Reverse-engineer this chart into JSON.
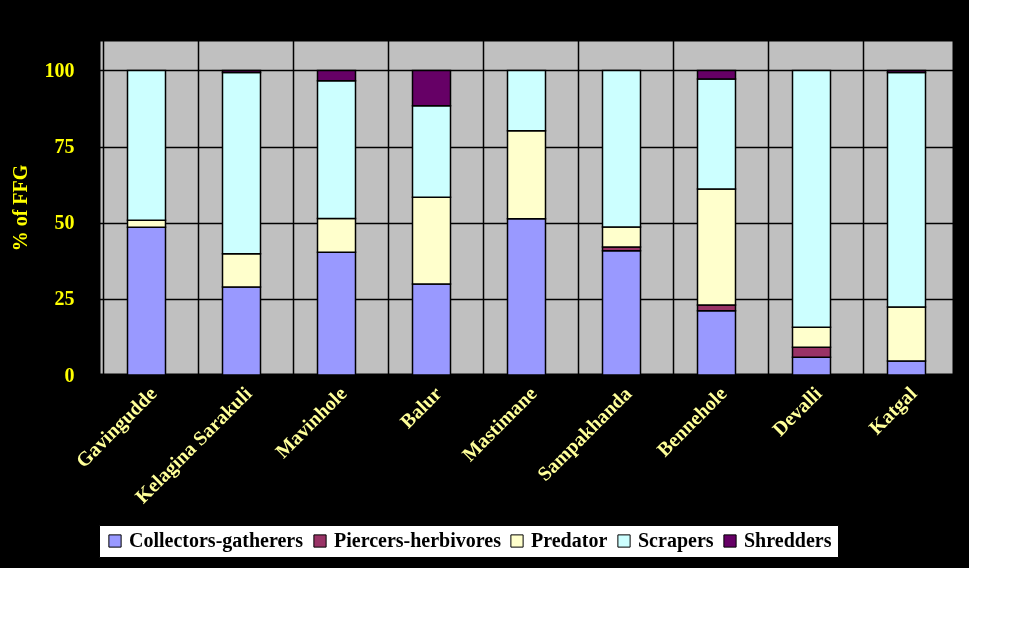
{
  "chart_data": {
    "type": "bar",
    "stacked": true,
    "ylabel": "% of FFG",
    "categories": [
      "Gavingudde",
      "Kelagina Sarakuli",
      "Mavinhole",
      "Balur",
      "Mastimane",
      "Sampakhanda",
      "Bennehole",
      "Devalli",
      "Katgal"
    ],
    "series": [
      {
        "name": "Collectors-gatherers",
        "color": "#9999ff",
        "values": [
          48.5,
          28.9,
          40.3,
          29.9,
          51.3,
          40.8,
          21.1,
          5.8,
          4.6
        ]
      },
      {
        "name": "Piercers-herbivores",
        "color": "#993366",
        "values": [
          0,
          0,
          0,
          0,
          0,
          1.2,
          1.9,
          3.3,
          0
        ]
      },
      {
        "name": "Predator",
        "color": "#ffffcc",
        "values": [
          2.3,
          10.9,
          11.1,
          28.5,
          28.9,
          6.6,
          38.1,
          6.6,
          17.7
        ]
      },
      {
        "name": "Scrapers",
        "color": "#ccffff",
        "values": [
          49.2,
          59.5,
          45.2,
          30.0,
          19.8,
          51.4,
          36.1,
          84.3,
          77.0
        ]
      },
      {
        "name": "Shredders",
        "color": "#660066",
        "values": [
          0,
          0.7,
          3.4,
          11.6,
          0,
          0,
          2.8,
          0,
          0.7
        ]
      }
    ],
    "ylim": [
      0,
      110
    ],
    "yticks": [
      0,
      25,
      50,
      75,
      100
    ],
    "grid": true,
    "legend": "bottom"
  }
}
